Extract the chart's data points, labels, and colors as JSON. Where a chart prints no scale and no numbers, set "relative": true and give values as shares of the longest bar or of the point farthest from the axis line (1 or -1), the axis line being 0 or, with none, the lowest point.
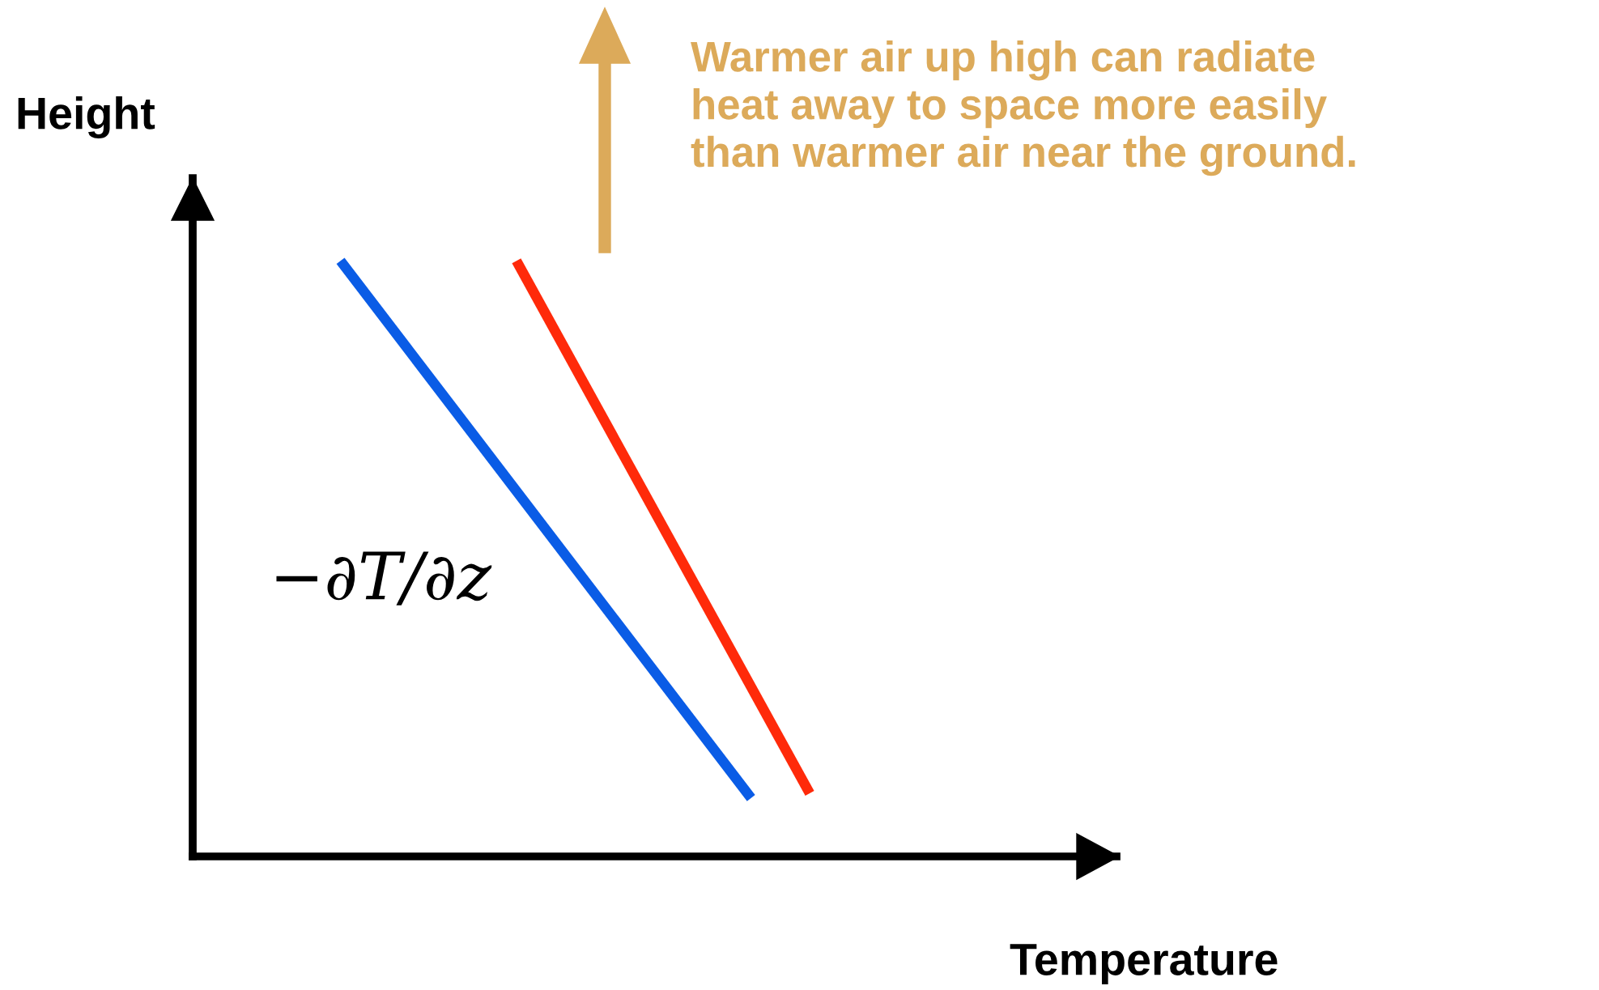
{
  "chart_data": {
    "type": "line",
    "relative": true,
    "xlabel": "Temperature",
    "ylabel": "Height",
    "categories": [
      null,
      null,
      null,
      null,
      null,
      null,
      null,
      null,
      null
    ],
    "series": [
      {
        "color": "#0a5ce6",
        "values": [
          1,
          null,
          null,
          null,
          null,
          null,
          null,
          0.098,
          null
        ]
      },
      {
        "color": "#ff2a0a",
        "values": [
          null,
          null,
          null,
          1,
          null,
          null,
          null,
          null,
          0.106
        ]
      }
    ],
    "annotations": [
      "−∂T/∂z",
      "Warmer air up high can radiate\nheat away to space more easily\nthan warmer air near the ground."
    ],
    "marker": "none",
    "line_style": "solid"
  }
}
